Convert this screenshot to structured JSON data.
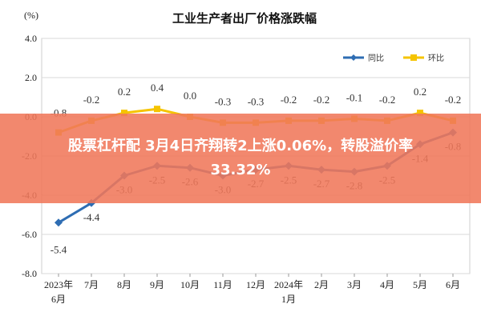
{
  "chart_data": {
    "type": "line",
    "title": "工业生产者出厂价格涨跌幅",
    "unit_label": "(%)",
    "ylim": [
      -8.0,
      4.0
    ],
    "yticks": [
      "4.0",
      "2.0",
      "0.0",
      "-2.0",
      "-4.0",
      "-6.0",
      "-8.0"
    ],
    "ytick_values": [
      4,
      2,
      0,
      -2,
      -4,
      -6,
      -8
    ],
    "categories": [
      [
        "2023年",
        "6月"
      ],
      [
        "7月",
        ""
      ],
      [
        "8月",
        ""
      ],
      [
        "9月",
        ""
      ],
      [
        "10月",
        ""
      ],
      [
        "11月",
        ""
      ],
      [
        "12月",
        ""
      ],
      [
        "2024年",
        "1月"
      ],
      [
        "2月",
        ""
      ],
      [
        "3月",
        ""
      ],
      [
        "4月",
        ""
      ],
      [
        "5月",
        ""
      ],
      [
        "6月",
        ""
      ]
    ],
    "legend_position": "top-right",
    "grid": true,
    "series": [
      {
        "name": "同比",
        "color": "#2e6db3",
        "values": [
          -5.4,
          -4.4,
          -3.0,
          -2.5,
          -2.6,
          -3.0,
          -2.7,
          -2.5,
          -2.7,
          -2.8,
          -2.5,
          -1.4,
          -0.8
        ],
        "labels": [
          "-5.4",
          "-4.4",
          "-3.0",
          "-2.5",
          "-2.6",
          "-3.0",
          "-2.7",
          "-2.5",
          "-2.7",
          "-2.8",
          "-2.5",
          "-1.4",
          "-0.8"
        ]
      },
      {
        "name": "环比",
        "color": "#f5c400",
        "values": [
          -0.8,
          -0.2,
          0.2,
          0.4,
          0.0,
          -0.3,
          -0.3,
          -0.2,
          -0.2,
          -0.1,
          -0.2,
          0.2,
          -0.2
        ],
        "labels": [
          "-0.8",
          "-0.2",
          "0.2",
          "0.4",
          "0.0",
          "-0.3",
          "-0.3",
          "-0.2",
          "-0.2",
          "-0.1",
          "-0.2",
          "0.2",
          "-0.2"
        ]
      }
    ]
  },
  "overlay": {
    "line1": "股票杠杆配 3月4日齐翔转2上涨0.06%，转股溢价率",
    "line2": "33.32%"
  }
}
